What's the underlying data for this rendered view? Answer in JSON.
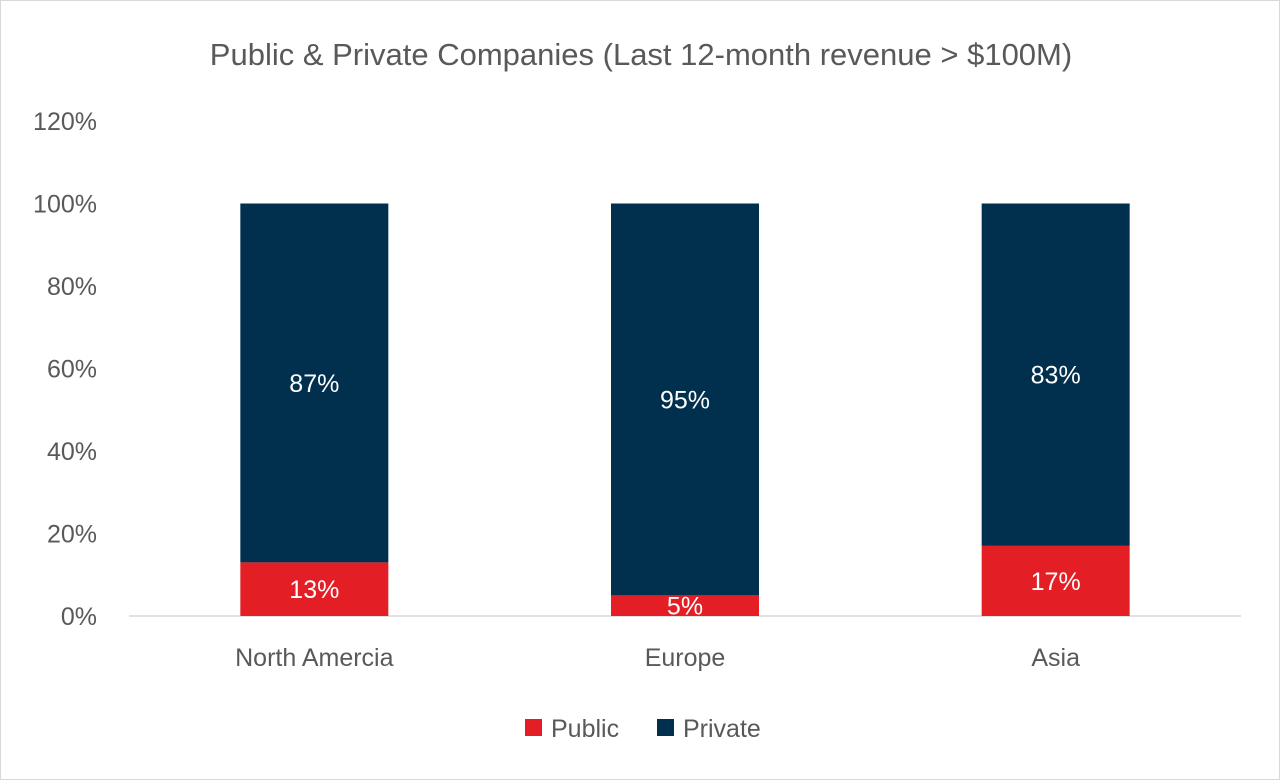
{
  "chart_data": {
    "type": "bar",
    "stacked": true,
    "title": "Public & Private Companies (Last 12-month revenue > $100M)",
    "categories": [
      "North Amercia",
      "Europe",
      "Asia"
    ],
    "series": [
      {
        "name": "Public",
        "color": "#e31e25",
        "values": [
          13,
          5,
          17
        ],
        "labels": [
          "13%",
          "5%",
          "17%"
        ]
      },
      {
        "name": "Private",
        "color": "#00304d",
        "values": [
          87,
          95,
          83
        ],
        "labels": [
          "87%",
          "95%",
          "83%"
        ]
      }
    ],
    "ylim": [
      0,
      120
    ],
    "yticks": [
      0,
      20,
      40,
      60,
      80,
      100,
      120
    ],
    "ytick_labels": [
      "0%",
      "20%",
      "40%",
      "60%",
      "80%",
      "100%",
      "120%"
    ],
    "grid": false,
    "legend": "bottom"
  }
}
